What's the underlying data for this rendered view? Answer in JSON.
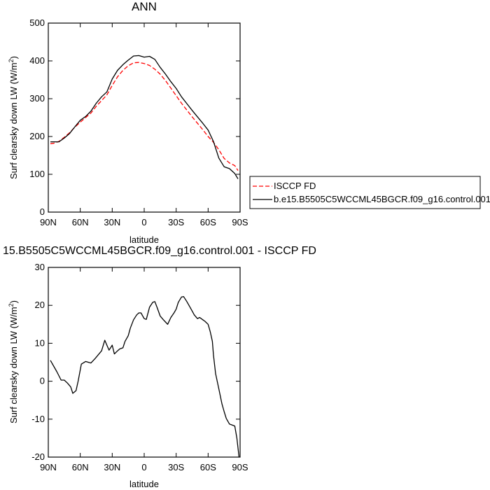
{
  "chart_data": [
    {
      "type": "line",
      "title": "ANN",
      "xlabel": "latitude",
      "ylabel": "Surf clearsky down LW (W/m",
      "ylabel_sup": "2",
      "ylabel_end": ")",
      "xlim": [
        90,
        -90
      ],
      "ylim": [
        0,
        500
      ],
      "x_ticks": [
        90,
        60,
        30,
        0,
        -30,
        -60,
        -90
      ],
      "x_tick_labels": [
        "90N",
        "60N",
        "30N",
        "0",
        "30S",
        "60S",
        "90S"
      ],
      "y_ticks": [
        0,
        100,
        200,
        300,
        400,
        500
      ],
      "y_tick_labels": [
        "0",
        "100",
        "200",
        "300",
        "400",
        "500"
      ],
      "legend_position": "right",
      "series": [
        {
          "name": "ISCCP FD",
          "color": "#ff0000",
          "dash": "dashed",
          "x": [
            88,
            85,
            80,
            75,
            70,
            65,
            60,
            55,
            50,
            45,
            40,
            35,
            30,
            25,
            20,
            15,
            10,
            5,
            0,
            -5,
            -10,
            -15,
            -20,
            -25,
            -30,
            -35,
            -40,
            -45,
            -50,
            -55,
            -60,
            -65,
            -70,
            -75,
            -80,
            -85,
            -88
          ],
          "y": [
            181,
            182,
            187,
            198,
            210,
            225,
            238,
            250,
            262,
            280,
            295,
            310,
            335,
            358,
            375,
            387,
            395,
            396,
            393,
            388,
            378,
            365,
            348,
            328,
            308,
            288,
            270,
            252,
            235,
            218,
            200,
            185,
            165,
            142,
            130,
            123,
            110
          ]
        },
        {
          "name": "b.e15.B5505C5WCCML45BGCR.f09_g16.control.001",
          "color": "#000000",
          "dash": "solid",
          "x": [
            88,
            85,
            80,
            75,
            70,
            65,
            60,
            55,
            50,
            45,
            40,
            35,
            30,
            25,
            20,
            15,
            10,
            5,
            0,
            -5,
            -10,
            -15,
            -20,
            -25,
            -30,
            -35,
            -40,
            -45,
            -50,
            -55,
            -60,
            -65,
            -70,
            -75,
            -80,
            -85,
            -88
          ],
          "y": [
            186,
            186,
            186,
            196,
            208,
            226,
            243,
            253,
            267,
            288,
            305,
            318,
            352,
            375,
            390,
            402,
            413,
            414,
            410,
            412,
            404,
            383,
            365,
            345,
            327,
            305,
            287,
            269,
            252,
            235,
            217,
            187,
            143,
            120,
            115,
            102,
            88
          ]
        }
      ]
    },
    {
      "type": "line",
      "title": "15.B5505C5WCCML45BGCR.f09_g16.control.001 - ISCCP FD",
      "xlabel": "latitude",
      "ylabel": "Surf clearsky down LW (W/m",
      "ylabel_sup": "2",
      "ylabel_end": ")",
      "xlim": [
        90,
        -90
      ],
      "ylim": [
        -20,
        30
      ],
      "x_ticks": [
        90,
        60,
        30,
        0,
        -30,
        -60,
        -90
      ],
      "x_tick_labels": [
        "90N",
        "60N",
        "30N",
        "0",
        "30S",
        "60S",
        "90S"
      ],
      "y_ticks": [
        -20,
        -10,
        0,
        10,
        20,
        30
      ],
      "y_tick_labels": [
        "-20",
        "-10",
        "0",
        "10",
        "20",
        "30"
      ],
      "series": [
        {
          "color": "#000000",
          "x": [
            88,
            82,
            78,
            75,
            72,
            69,
            67,
            64,
            62,
            59,
            55,
            50,
            46,
            43,
            40,
            37,
            35,
            33,
            30,
            28,
            25,
            23,
            20,
            18,
            15,
            13,
            10,
            7,
            5,
            3,
            0,
            -2,
            -5,
            -8,
            -10,
            -12,
            -15,
            -18,
            -20,
            -22,
            -25,
            -28,
            -30,
            -32,
            -35,
            -37,
            -40,
            -43,
            -45,
            -47,
            -50,
            -52,
            -55,
            -57,
            -60,
            -62,
            -64,
            -65,
            -67,
            -70,
            -73,
            -75,
            -77,
            -80,
            -82,
            -85,
            -87,
            -89
          ],
          "y": [
            5.5,
            2.5,
            0.3,
            0.3,
            -0.5,
            -1.5,
            -3.2,
            -2.5,
            0,
            4.5,
            5.2,
            4.8,
            6,
            7,
            8,
            10.8,
            9.5,
            8.2,
            9.5,
            7.2,
            8,
            8.5,
            8.8,
            10.5,
            12,
            14,
            16.2,
            17.5,
            18,
            18,
            16.5,
            16.3,
            19.5,
            20.8,
            21,
            19.5,
            17.2,
            16.2,
            15.6,
            15,
            16.8,
            18,
            19,
            20.8,
            22.2,
            22.3,
            21,
            19.5,
            18.5,
            17.5,
            16.5,
            16.8,
            16.2,
            15.8,
            15,
            13,
            10.5,
            7,
            2,
            -2,
            -6,
            -8,
            -9.8,
            -11.3,
            -11.5,
            -11.8,
            -15,
            -20
          ]
        }
      ]
    }
  ]
}
